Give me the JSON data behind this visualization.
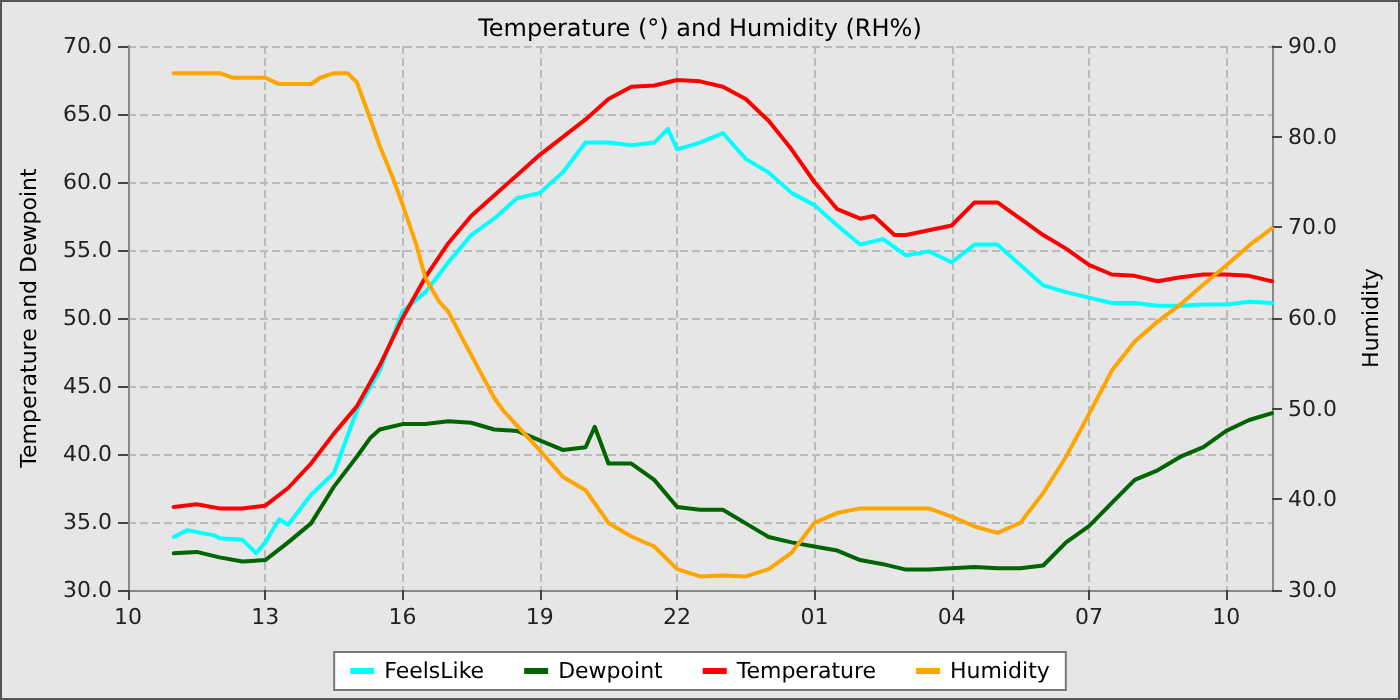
{
  "chart_data": {
    "type": "line",
    "title": "Temperature (°) and Humidity (RH%)",
    "ylabel": "Temperature and Dewpoint",
    "y2label": "Humidity",
    "xlim": [
      "--01-01T10:00",
      "--01-02T11:00"
    ],
    "xticks": [
      {
        "value": "--01-01T10:00",
        "label": "10"
      },
      {
        "value": "--01-01T13:00",
        "label": "13"
      },
      {
        "value": "--01-01T16:00",
        "label": "16"
      },
      {
        "value": "--01-01T19:00",
        "label": "19"
      },
      {
        "value": "--01-01T22:00",
        "label": "22"
      },
      {
        "value": "--01-02T01:00",
        "label": "01"
      },
      {
        "value": "--01-02T04:00",
        "label": "04"
      },
      {
        "value": "--01-02T07:00",
        "label": "07"
      },
      {
        "value": "--01-02T10:00",
        "label": "10"
      }
    ],
    "ylim": [
      30,
      70
    ],
    "yticks": [
      {
        "value": 30,
        "label": "30.0"
      },
      {
        "value": 35,
        "label": "35.0"
      },
      {
        "value": 40,
        "label": "40.0"
      },
      {
        "value": 45,
        "label": "45.0"
      },
      {
        "value": 50,
        "label": "50.0"
      },
      {
        "value": 55,
        "label": "55.0"
      },
      {
        "value": 60,
        "label": "60.0"
      },
      {
        "value": 65,
        "label": "65.0"
      },
      {
        "value": 70,
        "label": "70.0"
      }
    ],
    "y2lim": [
      30,
      90
    ],
    "y2ticks": [
      {
        "value": 30,
        "label": "30.0"
      },
      {
        "value": 40,
        "label": "40.0"
      },
      {
        "value": 50,
        "label": "50.0"
      },
      {
        "value": 60,
        "label": "60.0"
      },
      {
        "value": 70,
        "label": "70.0"
      },
      {
        "value": 80,
        "label": "80.0"
      },
      {
        "value": 90,
        "label": "90.0"
      }
    ],
    "grid": true,
    "legend": "bottom",
    "marker": "none",
    "line_style": "solid",
    "series": [
      {
        "name": "FeelsLike",
        "color": "#00ffff",
        "x": [
          "--01-01T11:00",
          "--01-01T11:18",
          "--01-01T11:54",
          "--01-01T12:00",
          "--01-01T12:30",
          "--01-01T12:48",
          "--01-01T13:00",
          "--01-01T13:18",
          "--01-01T13:30",
          "--01-01T14:00",
          "--01-01T14:30",
          "--01-01T15:00",
          "--01-01T15:30",
          "--01-01T16:00",
          "--01-01T16:30",
          "--01-01T17:00",
          "--01-01T17:30",
          "--01-01T18:00",
          "--01-01T18:30",
          "--01-01T19:00",
          "--01-01T19:30",
          "--01-01T20:00",
          "--01-01T20:30",
          "--01-01T21:00",
          "--01-01T21:30",
          "--01-01T21:48",
          "--01-01T22:00",
          "--01-01T22:30",
          "--01-01T23:00",
          "--01-01T23:30",
          "--01-02T00:00",
          "--01-02T00:30",
          "--01-02T01:00",
          "--01-02T01:30",
          "--01-02T02:00",
          "--01-02T02:30",
          "--01-02T03:00",
          "--01-02T03:30",
          "--01-02T04:00",
          "--01-02T04:30",
          "--01-02T05:00",
          "--01-02T05:30",
          "--01-02T06:00",
          "--01-02T06:30",
          "--01-02T07:00",
          "--01-02T07:30",
          "--01-02T08:00",
          "--01-02T08:30",
          "--01-02T09:00",
          "--01-02T09:30",
          "--01-02T10:00",
          "--01-02T10:30",
          "--01-02T11:00"
        ],
        "values": [
          33.9,
          34.4,
          34.0,
          33.8,
          33.7,
          32.7,
          33.5,
          35.2,
          34.8,
          37.0,
          38.6,
          43.2,
          46.1,
          50.5,
          51.9,
          54.1,
          56.1,
          57.3,
          58.8,
          59.2,
          60.7,
          62.9,
          62.9,
          62.7,
          62.9,
          63.9,
          62.4,
          62.9,
          63.6,
          61.7,
          60.7,
          59.2,
          58.3,
          56.8,
          55.4,
          55.8,
          54.6,
          54.9,
          54.1,
          55.4,
          55.4,
          53.9,
          52.4,
          51.9,
          51.5,
          51.1,
          51.1,
          50.9,
          50.9,
          51.0,
          51.0,
          51.2,
          51.1
        ]
      },
      {
        "name": "Dewpoint",
        "color": "#006400",
        "x": [
          "--01-01T11:00",
          "--01-01T11:30",
          "--01-01T12:00",
          "--01-01T12:30",
          "--01-01T13:00",
          "--01-01T13:30",
          "--01-01T14:00",
          "--01-01T14:30",
          "--01-01T15:00",
          "--01-01T15:18",
          "--01-01T15:30",
          "--01-01T16:00",
          "--01-01T16:30",
          "--01-01T17:00",
          "--01-01T17:30",
          "--01-01T18:00",
          "--01-01T18:30",
          "--01-01T19:00",
          "--01-01T19:30",
          "--01-01T20:00",
          "--01-01T20:12",
          "--01-01T20:30",
          "--01-01T21:00",
          "--01-01T21:30",
          "--01-01T22:00",
          "--01-01T22:30",
          "--01-01T23:00",
          "--01-01T23:30",
          "--01-02T00:00",
          "--01-02T00:30",
          "--01-02T01:00",
          "--01-02T01:30",
          "--01-02T02:00",
          "--01-02T02:30",
          "--01-02T03:00",
          "--01-02T03:30",
          "--01-02T04:00",
          "--01-02T04:30",
          "--01-02T05:00",
          "--01-02T05:30",
          "--01-02T06:00",
          "--01-02T06:30",
          "--01-02T07:00",
          "--01-02T07:30",
          "--01-02T08:00",
          "--01-02T08:30",
          "--01-02T09:00",
          "--01-02T09:30",
          "--01-02T10:00",
          "--01-02T10:30",
          "--01-02T11:00"
        ],
        "values": [
          32.7,
          32.8,
          32.4,
          32.1,
          32.2,
          33.5,
          34.9,
          37.6,
          39.8,
          41.2,
          41.8,
          42.2,
          42.2,
          42.4,
          42.3,
          41.8,
          41.7,
          41.0,
          40.3,
          40.5,
          42.0,
          39.3,
          39.3,
          38.1,
          36.1,
          35.9,
          35.9,
          34.9,
          33.9,
          33.5,
          33.2,
          32.9,
          32.2,
          31.9,
          31.5,
          31.5,
          31.6,
          31.7,
          31.6,
          31.6,
          31.8,
          33.5,
          34.7,
          36.4,
          38.1,
          38.8,
          39.8,
          40.5,
          41.7,
          42.5,
          43.0
        ]
      },
      {
        "name": "Temperature",
        "color": "#ff0000",
        "x": [
          "--01-01T11:00",
          "--01-01T11:30",
          "--01-01T12:00",
          "--01-01T12:30",
          "--01-01T13:00",
          "--01-01T13:30",
          "--01-01T14:00",
          "--01-01T14:30",
          "--01-01T15:00",
          "--01-01T15:30",
          "--01-01T16:00",
          "--01-01T16:30",
          "--01-01T17:00",
          "--01-01T17:30",
          "--01-01T18:00",
          "--01-01T18:30",
          "--01-01T19:00",
          "--01-01T20:00",
          "--01-01T20:30",
          "--01-01T21:00",
          "--01-01T21:30",
          "--01-01T22:00",
          "--01-01T22:30",
          "--01-01T23:00",
          "--01-01T23:30",
          "--01-02T00:00",
          "--01-02T00:30",
          "--01-02T01:00",
          "--01-02T01:30",
          "--01-02T02:00",
          "--01-02T02:18",
          "--01-02T02:45",
          "--01-02T03:00",
          "--01-02T04:00",
          "--01-02T04:30",
          "--01-02T05:00",
          "--01-02T05:30",
          "--01-02T06:00",
          "--01-02T06:30",
          "--01-02T07:00",
          "--01-02T07:30",
          "--01-02T08:00",
          "--01-02T08:30",
          "--01-02T09:00",
          "--01-02T09:30",
          "--01-02T10:00",
          "--01-02T10:30",
          "--01-02T11:00"
        ],
        "values": [
          36.1,
          36.3,
          36.0,
          36.0,
          36.2,
          37.5,
          39.3,
          41.5,
          43.5,
          46.5,
          50.0,
          53.0,
          55.5,
          57.5,
          59.0,
          60.5,
          62.0,
          64.6,
          66.1,
          67.0,
          67.1,
          67.5,
          67.4,
          67.0,
          66.1,
          64.5,
          62.4,
          60.0,
          58.0,
          57.3,
          57.5,
          56.1,
          56.1,
          56.8,
          58.5,
          58.5,
          57.3,
          56.1,
          55.1,
          53.9,
          53.2,
          53.1,
          52.7,
          53.0,
          53.2,
          53.2,
          53.1,
          52.7
        ]
      },
      {
        "name": "Humidity",
        "color": "#ffa500",
        "axis": "y2",
        "x": [
          "--01-01T11:00",
          "--01-01T12:00",
          "--01-01T12:18",
          "--01-01T13:00",
          "--01-01T13:18",
          "--01-01T14:00",
          "--01-01T14:12",
          "--01-01T14:30",
          "--01-01T14:48",
          "--01-01T15:00",
          "--01-01T15:18",
          "--01-01T15:30",
          "--01-01T15:48",
          "--01-01T16:00",
          "--01-01T16:18",
          "--01-01T16:30",
          "--01-01T16:48",
          "--01-01T17:00",
          "--01-01T17:18",
          "--01-01T17:36",
          "--01-01T18:00",
          "--01-01T18:12",
          "--01-01T19:00",
          "--01-01T19:30",
          "--01-01T20:00",
          "--01-01T20:30",
          "--01-01T21:00",
          "--01-01T21:30",
          "--01-01T22:00",
          "--01-01T22:30",
          "--01-01T23:00",
          "--01-01T23:30",
          "--01-02T00:00",
          "--01-02T00:30",
          "--01-02T01:00",
          "--01-02T01:30",
          "--01-02T02:00",
          "--01-02T02:30",
          "--01-02T03:00",
          "--01-02T03:30",
          "--01-02T04:00",
          "--01-02T04:30",
          "--01-02T05:00",
          "--01-02T05:30",
          "--01-02T06:00",
          "--01-02T06:30",
          "--01-02T07:00",
          "--01-02T07:30",
          "--01-02T08:00",
          "--01-02T08:30",
          "--01-02T09:00",
          "--01-02T09:30",
          "--01-02T10:00",
          "--01-02T10:30",
          "--01-02T11:00"
        ],
        "values": [
          87.0,
          87.0,
          86.5,
          86.5,
          85.8,
          85.8,
          86.5,
          87.0,
          87.0,
          86.0,
          81.9,
          79.0,
          75.3,
          72.5,
          68.1,
          64.4,
          61.8,
          60.7,
          57.8,
          55.0,
          51.2,
          49.8,
          45.4,
          42.5,
          41.0,
          37.4,
          35.9,
          34.8,
          32.3,
          31.5,
          31.6,
          31.5,
          32.3,
          34.1,
          37.4,
          38.5,
          39.0,
          39.0,
          39.0,
          39.0,
          38.1,
          37.0,
          36.3,
          37.4,
          40.7,
          44.7,
          49.4,
          54.2,
          57.4,
          59.6,
          61.5,
          63.7,
          65.8,
          68.0,
          69.9
        ]
      }
    ]
  }
}
